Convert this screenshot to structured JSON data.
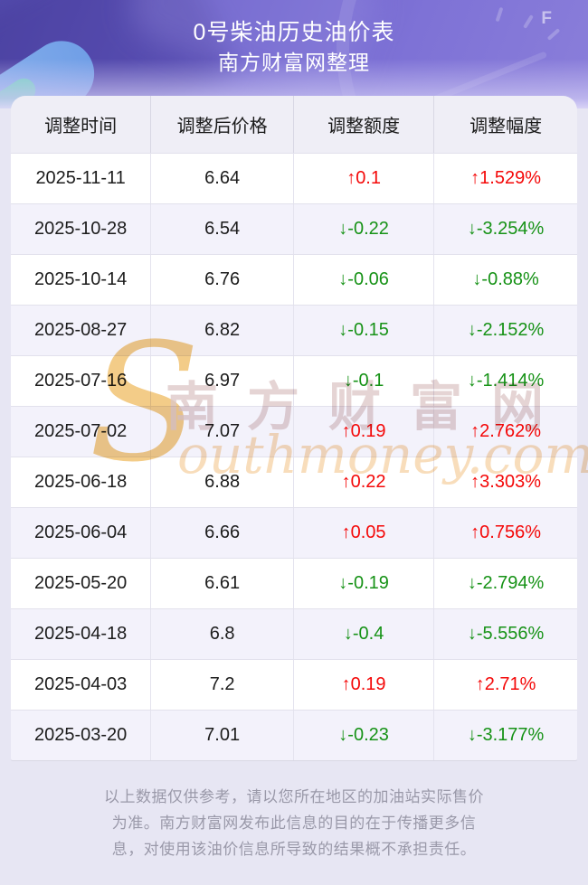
{
  "header": {
    "title": "0号柴油历史油价表",
    "subtitle": "南方财富网整理",
    "gauge_letter": "F"
  },
  "table": {
    "columns": [
      "调整时间",
      "调整后价格",
      "调整额度",
      "调整幅度"
    ],
    "rows": [
      {
        "date": "2025-11-11",
        "price": "6.64",
        "change": "↑0.1",
        "percent": "↑1.529%",
        "direction": "up"
      },
      {
        "date": "2025-10-28",
        "price": "6.54",
        "change": "↓-0.22",
        "percent": "↓-3.254%",
        "direction": "down"
      },
      {
        "date": "2025-10-14",
        "price": "6.76",
        "change": "↓-0.06",
        "percent": "↓-0.88%",
        "direction": "down"
      },
      {
        "date": "2025-08-27",
        "price": "6.82",
        "change": "↓-0.15",
        "percent": "↓-2.152%",
        "direction": "down"
      },
      {
        "date": "2025-07-16",
        "price": "6.97",
        "change": "↓-0.1",
        "percent": "↓-1.414%",
        "direction": "down"
      },
      {
        "date": "2025-07-02",
        "price": "7.07",
        "change": "↑0.19",
        "percent": "↑2.762%",
        "direction": "up"
      },
      {
        "date": "2025-06-18",
        "price": "6.88",
        "change": "↑0.22",
        "percent": "↑3.303%",
        "direction": "up"
      },
      {
        "date": "2025-06-04",
        "price": "6.66",
        "change": "↑0.05",
        "percent": "↑0.756%",
        "direction": "up"
      },
      {
        "date": "2025-05-20",
        "price": "6.61",
        "change": "↓-0.19",
        "percent": "↓-2.794%",
        "direction": "down"
      },
      {
        "date": "2025-04-18",
        "price": "6.8",
        "change": "↓-0.4",
        "percent": "↓-5.556%",
        "direction": "down"
      },
      {
        "date": "2025-04-03",
        "price": "7.2",
        "change": "↑0.19",
        "percent": "↑2.71%",
        "direction": "up"
      },
      {
        "date": "2025-03-20",
        "price": "7.01",
        "change": "↓-0.23",
        "percent": "↓-3.177%",
        "direction": "down"
      }
    ]
  },
  "watermark": {
    "s": "S",
    "cn": "南方财富网",
    "en": "outhmoney.com"
  },
  "footer": {
    "lines": [
      "以上数据仅供参考，请以您所在地区的加油站实际售价",
      "为准。南方财富网发布此信息的目的在于传播更多信",
      "息，对使用该油价信息所导致的结果概不承担责任。"
    ]
  },
  "colors": {
    "up": "#f40808",
    "down": "#169216"
  }
}
